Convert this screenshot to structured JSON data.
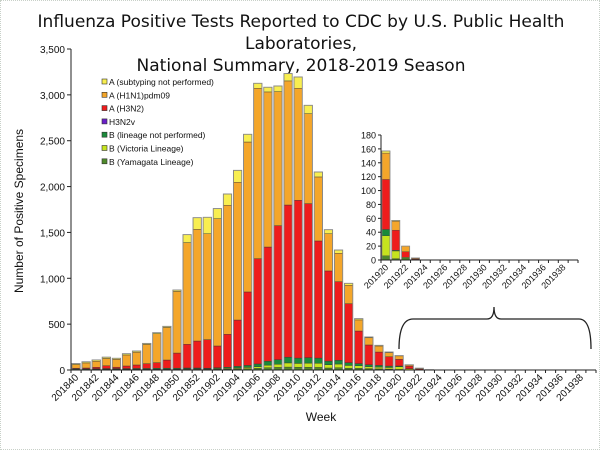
{
  "chart_data": {
    "type": "bar",
    "stacked": true,
    "title": "Influenza Positive Tests Reported to CDC by U.S. Public Health Laboratories,",
    "subtitle": "National Summary, 2018-2019 Season",
    "xlabel": "Week",
    "ylabel": "Number of Positive Specimens",
    "ylim": [
      0,
      3500
    ],
    "yticks": [
      "0",
      "500",
      "1,000",
      "1,500",
      "2,000",
      "2,500",
      "3,000",
      "3,500"
    ],
    "grid": false,
    "legend_position": "top-left",
    "categories": [
      "201840",
      "201841",
      "201842",
      "201843",
      "201844",
      "201845",
      "201846",
      "201847",
      "201848",
      "201849",
      "201850",
      "201851",
      "201852",
      "201901",
      "201902",
      "201903",
      "201904",
      "201905",
      "201906",
      "201907",
      "201908",
      "201909",
      "201910",
      "201911",
      "201912",
      "201913",
      "201914",
      "201915",
      "201916",
      "201917",
      "201918",
      "201919",
      "201920",
      "201921",
      "201922",
      "201923",
      "201924",
      "201925",
      "201926",
      "201927",
      "201928",
      "201929",
      "201930",
      "201931",
      "201932",
      "201933",
      "201934",
      "201935",
      "201936",
      "201937",
      "201938",
      "201939"
    ],
    "xtick_labels": [
      "201840",
      "201842",
      "201844",
      "201846",
      "201848",
      "201850",
      "201852",
      "201902",
      "201904",
      "201906",
      "201908",
      "201910",
      "201912",
      "201914",
      "201916",
      "201918",
      "201920",
      "201922",
      "201924",
      "201926",
      "201928",
      "201930",
      "201932",
      "201934",
      "201936",
      "201938"
    ],
    "series": [
      {
        "name": "B (Yamagata Lineage)",
        "color": "#4e8a2a",
        "values": [
          4,
          4,
          5,
          5,
          5,
          5,
          5,
          5,
          6,
          6,
          6,
          8,
          8,
          8,
          9,
          10,
          12,
          14,
          18,
          25,
          28,
          32,
          30,
          30,
          28,
          22,
          25,
          20,
          18,
          15,
          12,
          10,
          6,
          2,
          3,
          1,
          0,
          0,
          0,
          0,
          0,
          0,
          0,
          0,
          0,
          0,
          0,
          0,
          0,
          0,
          0,
          0
        ]
      },
      {
        "name": "B (Victoria Lineage)",
        "color": "#c6e41e",
        "values": [
          2,
          2,
          3,
          3,
          3,
          3,
          3,
          3,
          3,
          4,
          4,
          6,
          6,
          5,
          7,
          8,
          10,
          14,
          18,
          28,
          35,
          45,
          42,
          45,
          45,
          35,
          40,
          30,
          28,
          22,
          20,
          18,
          29,
          11,
          1,
          0,
          0,
          0,
          0,
          0,
          0,
          0,
          0,
          0,
          0,
          0,
          0,
          0,
          0,
          0,
          0,
          0
        ]
      },
      {
        "name": "B (lineage not performed)",
        "color": "#1a8a3a",
        "values": [
          6,
          6,
          7,
          8,
          8,
          8,
          9,
          9,
          10,
          10,
          10,
          8,
          8,
          7,
          9,
          12,
          18,
          22,
          30,
          42,
          50,
          63,
          58,
          60,
          57,
          40,
          40,
          30,
          24,
          20,
          18,
          15,
          9,
          1,
          0,
          0,
          0,
          0,
          0,
          0,
          0,
          0,
          0,
          0,
          0,
          0,
          0,
          0,
          0,
          0,
          0,
          0
        ]
      },
      {
        "name": "H3N2v",
        "color": "#6a1fc8",
        "values": [
          0,
          0,
          0,
          0,
          0,
          0,
          0,
          0,
          0,
          0,
          0,
          0,
          0,
          0,
          0,
          0,
          0,
          0,
          0,
          0,
          0,
          0,
          0,
          0,
          0,
          0,
          0,
          0,
          0,
          0,
          0,
          0,
          0,
          0,
          0,
          0,
          0,
          0,
          0,
          0,
          0,
          0,
          0,
          0,
          0,
          0,
          0,
          0,
          0,
          0,
          0,
          0
        ]
      },
      {
        "name": "A (H3N2)",
        "color": "#ee1c1c",
        "values": [
          8,
          10,
          15,
          30,
          15,
          28,
          38,
          52,
          61,
          89,
          165,
          258,
          294,
          311,
          237,
          359,
          505,
          801,
          1148,
          1246,
          1461,
          1659,
          1720,
          1679,
          1277,
          983,
          858,
          643,
          355,
          216,
          146,
          102,
          72,
          29,
          8,
          1,
          0,
          0,
          0,
          0,
          0,
          0,
          0,
          0,
          0,
          0,
          0,
          0,
          0,
          0,
          0,
          0
        ]
      },
      {
        "name": "A (H1N1)pdm09",
        "color": "#f4a62a",
        "values": [
          40,
          55,
          65,
          80,
          85,
          120,
          140,
          210,
          315,
          355,
          672,
          1109,
          1218,
          1155,
          1388,
          1407,
          1502,
          1635,
          1858,
          1691,
          1461,
          1353,
          1222,
          981,
          698,
          406,
          310,
          201,
          121,
          78,
          66,
          45,
          38,
          13,
          8,
          1,
          0,
          0,
          0,
          0,
          0,
          0,
          0,
          0,
          0,
          0,
          0,
          0,
          0,
          0,
          0,
          0
        ]
      },
      {
        "name": "A (subtyping not performed)",
        "color": "#f8ee50",
        "values": [
          10,
          13,
          15,
          14,
          12,
          14,
          12,
          11,
          12,
          12,
          15,
          87,
          127,
          179,
          110,
          123,
          130,
          84,
          54,
          51,
          62,
          80,
          123,
          91,
          54,
          44,
          35,
          21,
          14,
          9,
          7,
          6,
          3,
          1,
          0,
          0,
          0,
          0,
          0,
          0,
          0,
          0,
          0,
          0,
          0,
          0,
          0,
          0,
          0,
          0,
          0,
          0
        ]
      }
    ],
    "legend_order": [
      "A (subtyping not performed)",
      "A (H1N1)pdm09",
      "A (H3N2)",
      "H3N2v",
      "B (lineage not performed)",
      "B (Victoria Lineage)",
      "B (Yamagata Lineage)"
    ],
    "inset": {
      "x_range": [
        "201920",
        "201939"
      ],
      "ylim": [
        0,
        180
      ],
      "yticks": [
        "0",
        "20",
        "40",
        "60",
        "80",
        "100",
        "120",
        "140",
        "160",
        "180"
      ],
      "xtick_labels": [
        "201920",
        "201922",
        "201924",
        "201926",
        "201928",
        "201930",
        "201932",
        "201934",
        "201936",
        "201938"
      ]
    }
  }
}
